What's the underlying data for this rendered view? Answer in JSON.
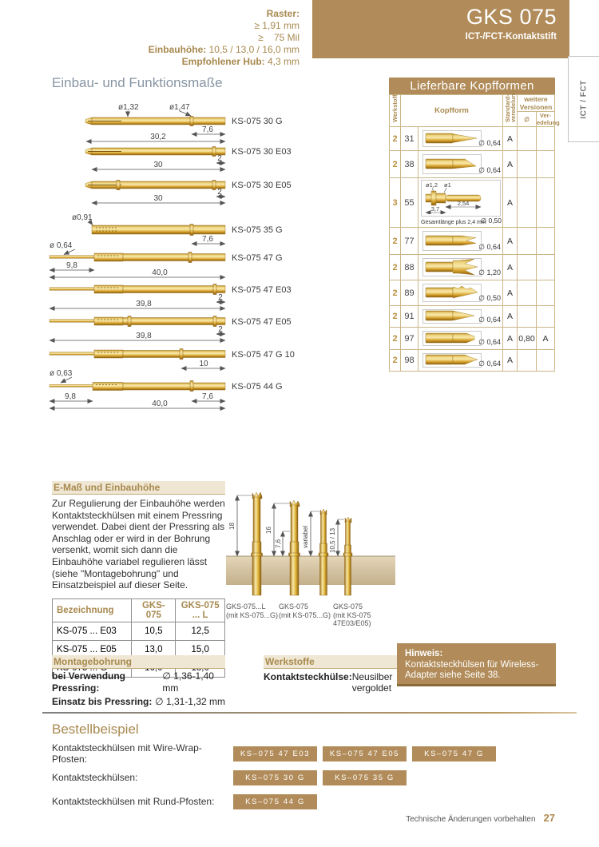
{
  "page": {
    "header": {
      "title": "GKS 075",
      "subtitle": "ICT-/FCT-Kontaktstift"
    },
    "tab": "ICT / FCT",
    "specs": {
      "raster_label": "Raster:",
      "raster_lines": [
        "≥ 1,91 mm",
        "≥    75 Mil"
      ],
      "einbauhoehe_label": "Einbauhöhe:",
      "einbauhoehe_value": "10,5 / 13,0 / 16,0 mm",
      "hub_label": "Empfohlener Hub:",
      "hub_value": "4,3 mm"
    },
    "footer": {
      "note": "Technische Änderungen vorbehalten",
      "page": "27"
    }
  },
  "diagram": {
    "title": "Einbau- und Funktionsmaße",
    "probes": [
      {
        "name": "KS-075 30 G",
        "d1": "ø1,32",
        "d2": "ø1,47",
        "dims": {
          "a": "30,2",
          "b": "7,6"
        }
      },
      {
        "name": "KS-075 30 E03",
        "dims": {
          "a": "30",
          "b": "2"
        }
      },
      {
        "name": "KS-075 30 E05",
        "dims": {
          "a": "30",
          "b": "2"
        }
      },
      {
        "name": "KS-075 35 G",
        "d1": "ø0,91",
        "dims": {
          "b": "7,6"
        }
      },
      {
        "name": "KS-075 47 G",
        "d1": "ø 0,64",
        "dims": {
          "a": "40,0",
          "b": "9,8"
        }
      },
      {
        "name": "KS-075 47 E03",
        "dims": {
          "a": "39,8",
          "b": "2"
        }
      },
      {
        "name": "KS-075 47 E05",
        "dims": {
          "a": "39,8",
          "b": "2"
        }
      },
      {
        "name": "KS-075 47 G 10",
        "dims": {
          "b": "10"
        }
      },
      {
        "name": "KS-075 44 G",
        "d1": "ø 0,63",
        "dims": {
          "a": "40,0",
          "b": "9,8",
          "c": "7,6"
        }
      }
    ]
  },
  "kopfformen": {
    "title": "Lieferbare Kopfformen",
    "headers": {
      "werkstoff": "Werkstoff",
      "kopfform": "Kopfform",
      "standard": "Standard-veredelung",
      "weitere": "weitere Versionen",
      "dia": "∅",
      "veredelung": "Ver-edelung"
    },
    "rows": [
      {
        "mat": "2",
        "nr": "31",
        "dia": "∅ 0,64",
        "std": "A",
        "head": "long_taper"
      },
      {
        "mat": "2",
        "nr": "38",
        "dia": "∅ 0,64",
        "std": "A",
        "head": "chisel"
      },
      {
        "mat": "3",
        "nr": "55",
        "dia": "∅ 0,50",
        "std": "A",
        "head": "plunger",
        "labels": {
          "d1": "ø1,2",
          "d2": "ø1",
          "l1": "3,7",
          "l2": "2,54",
          "note": "Gesamtlänge plus 2,4 mm"
        }
      },
      {
        "mat": "2",
        "nr": "77",
        "dia": "∅ 0,64",
        "std": "A",
        "head": "tri_point"
      },
      {
        "mat": "2",
        "nr": "88",
        "dia": "∅ 1,20",
        "std": "A",
        "head": "crown"
      },
      {
        "mat": "2",
        "nr": "89",
        "dia": "∅ 0,50",
        "std": "A",
        "head": "serrated_cone"
      },
      {
        "mat": "2",
        "nr": "91",
        "dia": "∅ 0,64",
        "std": "A",
        "head": "cone"
      },
      {
        "mat": "2",
        "nr": "97",
        "dia": "∅ 0,64",
        "std": "A",
        "head": "flat_cone",
        "wd": "0,80",
        "wv": "A"
      },
      {
        "mat": "2",
        "nr": "98",
        "dia": "∅ 0,64",
        "std": "A",
        "head": "cone_small_tip"
      }
    ]
  },
  "emass": {
    "title": "E-Maß und Einbauhöhe",
    "text": "Zur Regulierung der Einbauhöhe werden Kontaktsteckhülsen mit einem Pressring verwendet. Dabei dient der Pressring als Anschlag oder er wird in der Bohrung versenkt, womit sich dann die Einbauhöhe variabel regulieren lässt (siehe \"Montagebohrung\" und Einsatzbeispiel auf dieser Seite.",
    "table": {
      "headers": [
        "Bezeichnung",
        "GKS-075",
        "GKS-075 ... L"
      ],
      "rows": [
        [
          "KS-075 ... E03",
          "10,5",
          "12,5"
        ],
        [
          "KS-075 ... E05",
          "13,0",
          "15,0"
        ],
        [
          "KS-075 ... G",
          "16,0",
          "18,0"
        ]
      ]
    },
    "figure": {
      "dims": [
        "18",
        "16",
        "7,6",
        "variabel",
        "10,5 / 13"
      ],
      "captions": [
        "GKS-075...L\n(mit KS-075...G)",
        "GKS-075\n(mit KS-075...G)",
        "GKS-075\n(mit KS-075\n47E03/E05)"
      ]
    }
  },
  "montage": {
    "title": "Montagebohrung",
    "rows": [
      [
        "bei Verwendung Pressring:",
        "∅ 1,36-1,40 mm"
      ],
      [
        "Einsatz bis Pressring:",
        "∅ 1,31-1,32 mm"
      ]
    ]
  },
  "werkstoffe": {
    "title": "Werkstoffe",
    "label": "Kontaktsteckhülse:",
    "value": "Neusilber vergoldet"
  },
  "hinweis": {
    "title": "Hinweis:",
    "text": "Kontaktsteckhülsen für Wireless-Adapter siehe Seite 38."
  },
  "bestell": {
    "title": "Bestellbeispiel",
    "rows": [
      {
        "label": "Kontaktsteckhülsen mit Wire-Wrap-Pfosten:",
        "badges": [
          "KS–075 47 E03",
          "KS–075 47 E05",
          "KS–075 47 G"
        ]
      },
      {
        "label": "Kontaktsteckhülsen:",
        "badges": [
          "KS–075 30 G",
          "KS–075 35 G"
        ]
      },
      {
        "label": "Kontaktsteckhülsen mit Rund-Pfosten:",
        "badges": [
          "KS–075 44 G"
        ]
      }
    ]
  },
  "colors": {
    "brand": "#b18c5a",
    "heading_blue": "#8795a3",
    "gold_dark": "#8a5d10"
  }
}
